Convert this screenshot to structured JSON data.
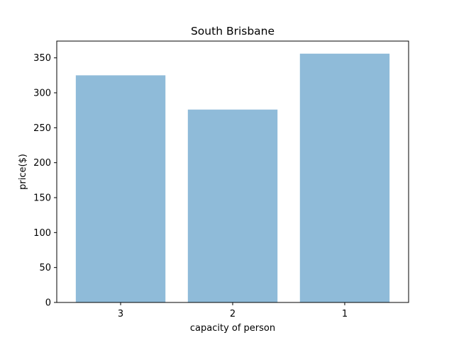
{
  "chart_data": {
    "type": "bar",
    "title": "South Brisbane",
    "xlabel": "capacity of person",
    "ylabel": "price($)",
    "categories": [
      "3",
      "2",
      "1"
    ],
    "values": [
      325,
      276,
      356
    ],
    "ylim": [
      0,
      374
    ],
    "yticks": [
      0,
      50,
      100,
      150,
      200,
      250,
      300,
      350
    ],
    "bar_color": "#8fbbd9",
    "grid": false,
    "legend": "none"
  }
}
